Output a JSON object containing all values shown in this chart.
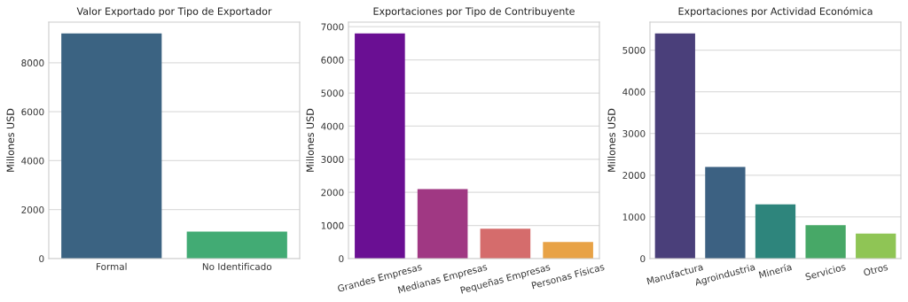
{
  "chart_data": [
    {
      "type": "bar",
      "title": "Valor Exportado por Tipo de Exportador",
      "ylabel": "Millones USD",
      "categories": [
        "Formal",
        "No Identificado"
      ],
      "values": [
        9200,
        1100
      ],
      "colors": [
        "#3b6382",
        "#42ab74"
      ],
      "ylim": [
        0,
        9660
      ],
      "yticks": [
        0,
        2000,
        4000,
        6000,
        8000
      ],
      "grid": "y"
    },
    {
      "type": "bar",
      "title": "Exportaciones por Tipo de Contribuyente",
      "ylabel": "Millones USD",
      "categories": [
        "Grandes Empresas",
        "Medianas Empresas",
        "Pequeñas Empresas",
        "Personas Físicas"
      ],
      "values": [
        6800,
        2100,
        900,
        500
      ],
      "colors": [
        "#6a0f93",
        "#a03883",
        "#d56c6c",
        "#e8a246"
      ],
      "ylim": [
        0,
        7140
      ],
      "yticks": [
        0,
        1000,
        2000,
        3000,
        4000,
        5000,
        6000,
        7000
      ],
      "grid": "y"
    },
    {
      "type": "bar",
      "title": "Exportaciones por Actividad Económica",
      "ylabel": "Millones USD",
      "categories": [
        "Manufactura",
        "Agroindustria",
        "Minería",
        "Servicios",
        "Otros"
      ],
      "values": [
        5400,
        2200,
        1300,
        800,
        600
      ],
      "colors": [
        "#4a3f7a",
        "#3c6182",
        "#2e857c",
        "#47a867",
        "#8fc555"
      ],
      "ylim": [
        0,
        5670
      ],
      "yticks": [
        0,
        1000,
        2000,
        3000,
        4000,
        5000
      ],
      "grid": "y"
    }
  ]
}
